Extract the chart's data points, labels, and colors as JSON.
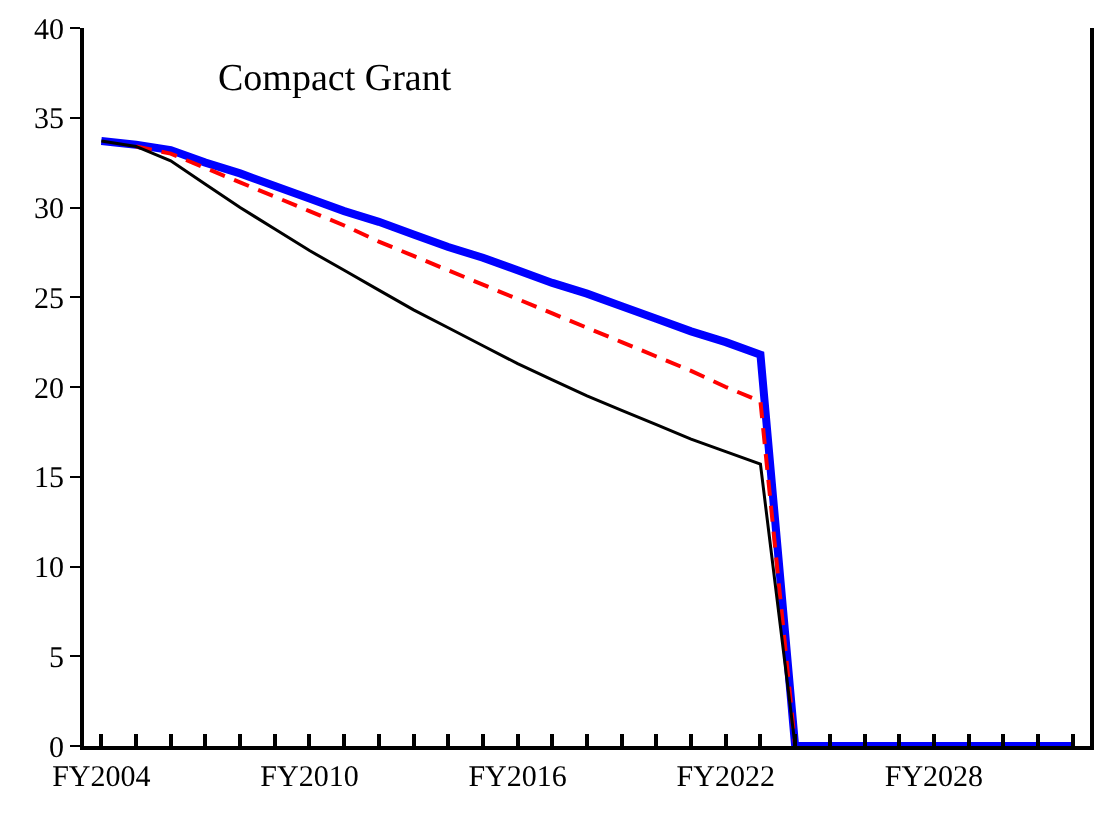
{
  "chart_data": {
    "type": "line",
    "title": "Compact Grant",
    "categories": [
      "FY2004",
      null,
      null,
      null,
      null,
      null,
      "FY2010",
      null,
      null,
      null,
      null,
      null,
      "FY2016",
      null,
      null,
      null,
      null,
      null,
      "FY2022",
      null,
      null,
      null,
      null,
      null,
      "FY2028",
      null,
      null,
      null,
      null
    ],
    "series": [
      {
        "color": "#0000ff",
        "line_style": "solid",
        "values": [
          33.7,
          33.5,
          33.2,
          32.5,
          31.9,
          31.2,
          30.5,
          29.8,
          29.2,
          28.5,
          27.8,
          27.2,
          26.5,
          25.8,
          25.2,
          24.5,
          23.8,
          23.1,
          22.5,
          21.8,
          0,
          0,
          0,
          0,
          0,
          0,
          0,
          0,
          0
        ]
      },
      {
        "color": "#ff0000",
        "line_style": "dashed",
        "values": [
          null,
          33.4,
          33.0,
          32.2,
          31.4,
          30.6,
          29.8,
          29.0,
          28.1,
          27.3,
          26.5,
          25.7,
          24.9,
          24.1,
          23.3,
          22.5,
          21.7,
          20.9,
          20.0,
          19.2,
          0,
          null,
          null,
          null,
          null,
          null,
          null,
          null,
          null
        ]
      },
      {
        "color": "#000000",
        "line_style": "solid",
        "values": [
          33.7,
          33.4,
          32.6,
          31.3,
          30.0,
          28.8,
          27.6,
          26.5,
          25.4,
          24.3,
          23.3,
          22.3,
          21.3,
          20.4,
          19.5,
          18.7,
          17.9,
          17.1,
          16.4,
          15.7,
          0,
          null,
          null,
          null,
          null,
          null,
          null,
          null,
          null
        ]
      }
    ],
    "ylim": [
      0,
      40
    ],
    "yticks": [
      0,
      5,
      10,
      15,
      20,
      25,
      30,
      35,
      40
    ],
    "marker": "none"
  }
}
